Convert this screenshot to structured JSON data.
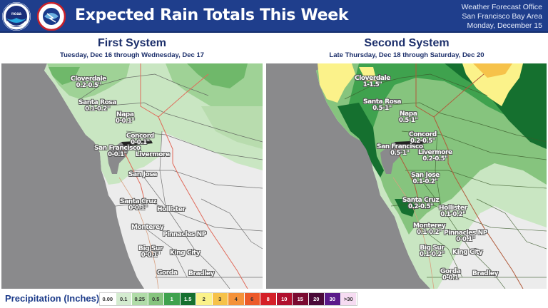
{
  "header": {
    "title": "Expected Rain Totals This Week",
    "office_lines": [
      "Weather Forecast Office",
      "San Francisco Bay Area",
      "Monday, December 15"
    ],
    "logos": [
      "noaa-logo",
      "nws-logo"
    ],
    "noaa_text": "NOAA"
  },
  "panels": [
    {
      "title": "First System",
      "subtitle": "Tuesday, Dec 16 through Wednesday, Dec 17",
      "cities": [
        {
          "name": "Cloverdale",
          "amount": "0.2-0.5\""
        },
        {
          "name": "Santa Rosa",
          "amount": "0.1-0.2\""
        },
        {
          "name": "Napa",
          "amount": "0-0.1\""
        },
        {
          "name": "Concord",
          "amount": "0-0.1\""
        },
        {
          "name": "San Francisco",
          "amount": "0-0.1\""
        },
        {
          "name": "Livermore",
          "amount": ""
        },
        {
          "name": "San Jose",
          "amount": ""
        },
        {
          "name": "Santa Cruz",
          "amount": "0-0.1\""
        },
        {
          "name": "Hollister",
          "amount": ""
        },
        {
          "name": "Monterey",
          "amount": ""
        },
        {
          "name": "Pinnacles NP",
          "amount": ""
        },
        {
          "name": "Big Sur",
          "amount": "0-0.1\""
        },
        {
          "name": "King City",
          "amount": ""
        },
        {
          "name": "Gorda",
          "amount": ""
        },
        {
          "name": "Bradley",
          "amount": ""
        }
      ]
    },
    {
      "title": "Second System",
      "subtitle": "Late Thursday, Dec 18 through Saturday, Dec 20",
      "cities": [
        {
          "name": "Cloverdale",
          "amount": "1-1.5\""
        },
        {
          "name": "Santa Rosa",
          "amount": "0.5-1\""
        },
        {
          "name": "Napa",
          "amount": "0.5-1\""
        },
        {
          "name": "Concord",
          "amount": "0.2-0.5\""
        },
        {
          "name": "San Francisco",
          "amount": "0.5-1\""
        },
        {
          "name": "Livermore",
          "amount": "0.2-0.5\""
        },
        {
          "name": "San Jose",
          "amount": "0.1-0.2\""
        },
        {
          "name": "Santa Cruz",
          "amount": "0.2-0.5\""
        },
        {
          "name": "Hollister",
          "amount": "0.1-0.2\""
        },
        {
          "name": "Monterey",
          "amount": "0.1-0.2\""
        },
        {
          "name": "Pinnacles NP",
          "amount": "0-0.1\""
        },
        {
          "name": "Big Sur",
          "amount": "0.1-0.2\""
        },
        {
          "name": "King City",
          "amount": ""
        },
        {
          "name": "Gorda",
          "amount": "0-0.1"
        },
        {
          "name": "Bradley",
          "amount": ""
        }
      ]
    }
  ],
  "legend": {
    "label": "Precipitation (Inches)",
    "bins": [
      {
        "label": "0.00",
        "color": "#ffffff",
        "text": "#333333"
      },
      {
        "label": "0.1",
        "color": "#d4ecd0",
        "text": "#333333"
      },
      {
        "label": "0.25",
        "color": "#b0dca8",
        "text": "#333333"
      },
      {
        "label": "0.5",
        "color": "#86c47e",
        "text": "#333333"
      },
      {
        "label": "1",
        "color": "#3fa24e",
        "text": "#ffffff"
      },
      {
        "label": "1.5",
        "color": "#15702f",
        "text": "#ffffff"
      },
      {
        "label": "2",
        "color": "#fbf28a",
        "text": "#333333"
      },
      {
        "label": "3",
        "color": "#f6c24a",
        "text": "#333333"
      },
      {
        "label": "4",
        "color": "#f4923a",
        "text": "#333333"
      },
      {
        "label": "6",
        "color": "#ec5a2a",
        "text": "#333333"
      },
      {
        "label": "8",
        "color": "#d42028",
        "text": "#ffffff"
      },
      {
        "label": "10",
        "color": "#b0102e",
        "text": "#ffffff"
      },
      {
        "label": "15",
        "color": "#7a0a30",
        "text": "#ffffff"
      },
      {
        "label": "20",
        "color": "#4a0a38",
        "text": "#ffffff"
      },
      {
        "label": "30",
        "color": "#5a1a8a",
        "text": "#ffffff"
      },
      {
        "label": ">30",
        "color": "#f6dcf2",
        "text": "#333333"
      }
    ]
  },
  "colors": {
    "header_bg": "#1f3e8c",
    "title_text": "#1c2f6b",
    "ocean": "#8a8a8c",
    "land_dry": "#ececec"
  }
}
